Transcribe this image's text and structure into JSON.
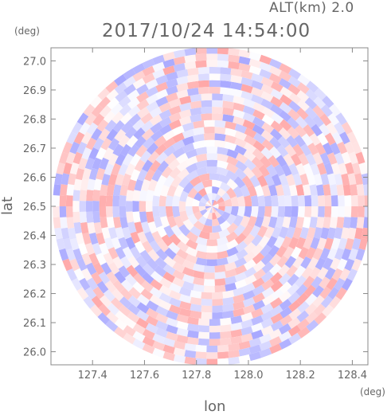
{
  "header": {
    "altitude_label": "ALT(km) 2.0",
    "datetime": "2017/10/24 14:54:00"
  },
  "chart_data": {
    "type": "heatmap",
    "title": "2017/10/24 14:54:00",
    "subtitle": "ALT(km) 2.0",
    "xlabel": "lon",
    "ylabel": "lat",
    "xunit": "(deg)",
    "yunit": "(deg)",
    "xlim": [
      127.24,
      128.46
    ],
    "ylim": [
      25.955,
      27.045
    ],
    "xticks": [
      "127.4",
      "127.6",
      "127.8",
      "128.0",
      "128.2",
      "128.4"
    ],
    "yticks": [
      "26.0",
      "26.1",
      "26.2",
      "26.3",
      "26.4",
      "26.5",
      "26.6",
      "26.7",
      "26.8",
      "26.9",
      "27.0"
    ],
    "center": {
      "lon": 127.86,
      "lat": 26.5
    },
    "colormap": [
      "#8a8aff",
      "#ffffff",
      "#ff8a8a"
    ],
    "grid": false
  }
}
